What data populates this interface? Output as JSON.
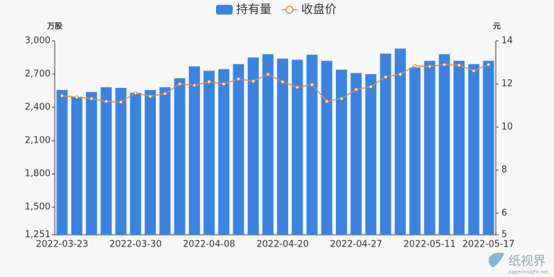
{
  "chart_data": {
    "type": "bar-line",
    "categories": [
      "2022-03-23",
      null,
      null,
      null,
      null,
      "2022-03-30",
      null,
      null,
      null,
      null,
      "2022-04-08",
      null,
      null,
      null,
      null,
      "2022-04-20",
      null,
      null,
      null,
      null,
      "2022-04-27",
      null,
      null,
      null,
      null,
      "2022-05-11",
      null,
      null,
      null,
      "2022-05-17"
    ],
    "y_axis_label": "万股",
    "y2_axis_label": "元",
    "series": [
      {
        "name": "持有量",
        "type": "bar",
        "color": "#3a84e0",
        "values": [
          2557,
          2495,
          2539,
          2582,
          2576,
          2532,
          2557,
          2582,
          2663,
          2770,
          2730,
          2745,
          2790,
          2850,
          2880,
          2840,
          2830,
          2875,
          2820,
          2740,
          2710,
          2700,
          2885,
          2930,
          2760,
          2820,
          2880,
          2820,
          2790,
          2820
        ]
      },
      {
        "name": "收盘价",
        "type": "line",
        "axis": "y2",
        "color": "#e8854a",
        "values": [
          11.45,
          11.39,
          11.32,
          11.19,
          11.16,
          11.58,
          11.42,
          11.55,
          12.0,
          11.94,
          12.1,
          12.0,
          12.23,
          12.13,
          12.45,
          12.1,
          11.84,
          11.97,
          11.19,
          11.32,
          11.74,
          11.87,
          12.32,
          12.45,
          12.84,
          12.81,
          12.9,
          12.87,
          12.61,
          12.9
        ]
      }
    ],
    "ylim": [
      1251,
      3000
    ],
    "yticks": [
      {
        "value": 1251,
        "label": "1,251"
      },
      {
        "value": 1500,
        "label": "1,500"
      },
      {
        "value": 1800,
        "label": "1,800"
      },
      {
        "value": 2100,
        "label": "2,100"
      },
      {
        "value": 2400,
        "label": "2,400"
      },
      {
        "value": 2700,
        "label": "2,700"
      },
      {
        "value": 3000,
        "label": "3,000"
      }
    ],
    "y2lim": [
      5,
      14
    ],
    "y2ticks": [
      5,
      6,
      8,
      10,
      12,
      14
    ],
    "grid": false,
    "legend": "top",
    "watermark": {
      "name": "纸视界",
      "url": "paperinsight.net"
    }
  }
}
